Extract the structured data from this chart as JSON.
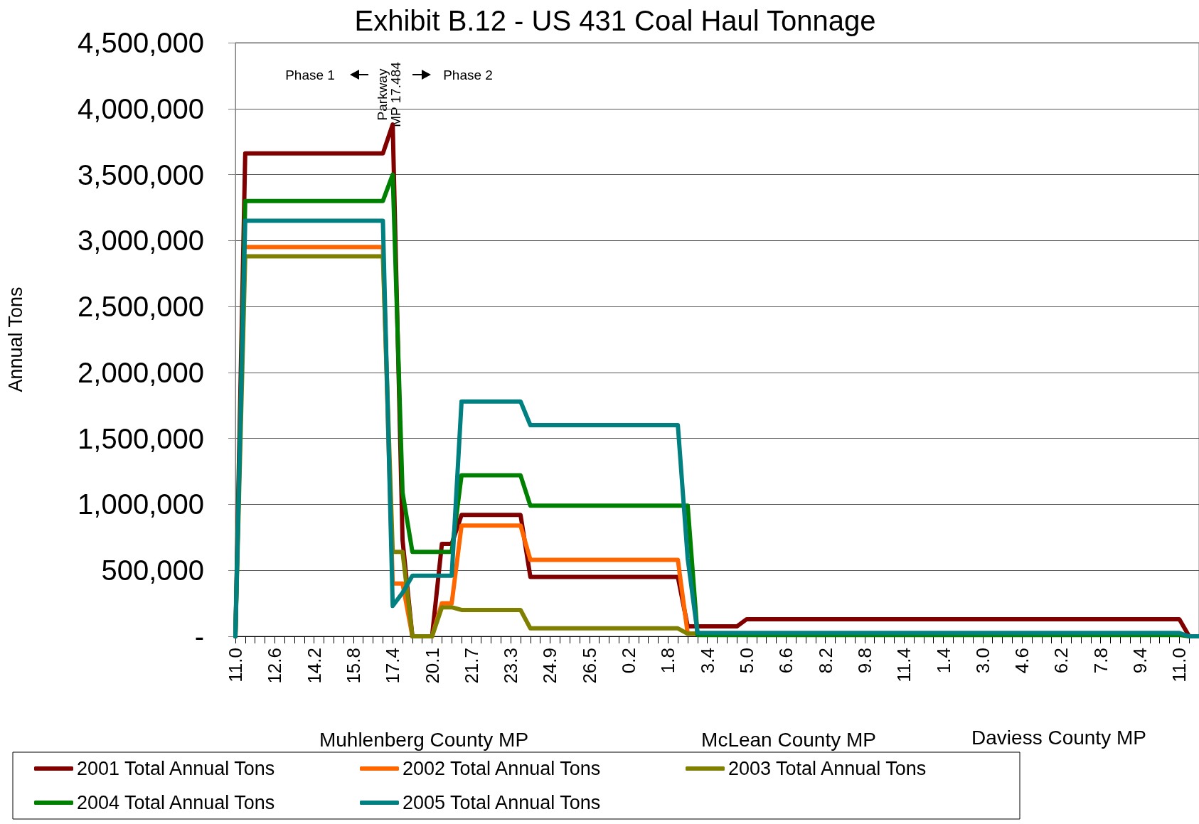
{
  "chart_data": {
    "type": "line",
    "title": "Exhibit B.12 - US 431 Coal Haul Tonnage",
    "ylabel": "Annual Tons",
    "categories": [
      "11.0",
      null,
      null,
      null,
      "12.6",
      null,
      null,
      null,
      "14.2",
      null,
      null,
      null,
      "15.8",
      null,
      null,
      null,
      "17.4",
      null,
      null,
      null,
      "20.1",
      null,
      null,
      null,
      "21.7",
      null,
      null,
      null,
      "23.3",
      null,
      null,
      null,
      "24.9",
      null,
      null,
      null,
      "26.5",
      null,
      null,
      null,
      "0.2",
      null,
      null,
      null,
      "1.8",
      null,
      null,
      null,
      "3.4",
      null,
      null,
      null,
      "5.0",
      null,
      null,
      null,
      "6.6",
      null,
      null,
      null,
      "8.2",
      null,
      null,
      null,
      "9.8",
      null,
      null,
      null,
      "11.4",
      null,
      null,
      null,
      "1.4",
      null,
      null,
      null,
      "3.0",
      null,
      null,
      null,
      "4.6",
      null,
      null,
      null,
      "6.2",
      null,
      null,
      null,
      "7.8",
      null,
      null,
      null,
      "9.4",
      null,
      null,
      null,
      "11.0",
      null,
      null
    ],
    "series": [
      {
        "name": "2001 Total Annual Tons",
        "color": "#800000",
        "values": [
          0,
          3660000,
          3660000,
          3660000,
          3660000,
          3660000,
          3660000,
          3660000,
          3660000,
          3660000,
          3660000,
          3660000,
          3660000,
          3660000,
          3660000,
          3660000,
          3880000,
          730000,
          0,
          0,
          0,
          700000,
          700000,
          920000,
          920000,
          920000,
          920000,
          920000,
          920000,
          920000,
          450000,
          450000,
          450000,
          450000,
          450000,
          450000,
          450000,
          450000,
          450000,
          450000,
          450000,
          450000,
          450000,
          450000,
          450000,
          450000,
          75000,
          75000,
          75000,
          75000,
          75000,
          75000,
          130000,
          130000,
          130000,
          130000,
          130000,
          130000,
          130000,
          130000,
          130000,
          130000,
          130000,
          130000,
          130000,
          130000,
          130000,
          130000,
          130000,
          130000,
          130000,
          130000,
          130000,
          130000,
          130000,
          130000,
          130000,
          130000,
          130000,
          130000,
          130000,
          130000,
          130000,
          130000,
          130000,
          130000,
          130000,
          130000,
          130000,
          130000,
          130000,
          130000,
          130000,
          130000,
          130000,
          130000,
          130000,
          0,
          0
        ]
      },
      {
        "name": "2002 Total Annual Tons",
        "color": "#ff6600",
        "values": [
          null,
          2950000,
          2950000,
          2950000,
          2950000,
          2950000,
          2950000,
          2950000,
          2950000,
          2950000,
          2950000,
          2950000,
          2950000,
          2950000,
          2950000,
          2950000,
          400000,
          400000,
          0,
          null,
          0,
          250000,
          250000,
          840000,
          840000,
          840000,
          840000,
          840000,
          840000,
          840000,
          580000,
          580000,
          580000,
          580000,
          580000,
          580000,
          580000,
          580000,
          580000,
          580000,
          580000,
          580000,
          580000,
          580000,
          580000,
          580000,
          20000,
          20000,
          null,
          null,
          null,
          null,
          null,
          null,
          null,
          null,
          null,
          null,
          null,
          null,
          null,
          null,
          null,
          null,
          null,
          null,
          null,
          null,
          null,
          null,
          null,
          null,
          null,
          null,
          null,
          null,
          null,
          null,
          null,
          null,
          null,
          null,
          null,
          null,
          null,
          null,
          null,
          null,
          null,
          null,
          null,
          null,
          null,
          null,
          null,
          null,
          null,
          null,
          null
        ]
      },
      {
        "name": "2003 Total Annual Tons",
        "color": "#808000",
        "values": [
          0,
          2880000,
          2880000,
          2880000,
          2880000,
          2880000,
          2880000,
          2880000,
          2880000,
          2880000,
          2880000,
          2880000,
          2880000,
          2880000,
          2880000,
          2880000,
          640000,
          640000,
          0,
          0,
          0,
          220000,
          220000,
          200000,
          200000,
          200000,
          200000,
          200000,
          200000,
          200000,
          60000,
          60000,
          60000,
          60000,
          60000,
          60000,
          60000,
          60000,
          60000,
          60000,
          60000,
          60000,
          60000,
          60000,
          60000,
          60000,
          20000,
          20000,
          null,
          null,
          null,
          null,
          null,
          null,
          null,
          null,
          null,
          null,
          null,
          null,
          null,
          null,
          null,
          null,
          null,
          null,
          null,
          null,
          null,
          null,
          null,
          null,
          null,
          null,
          null,
          null,
          null,
          null,
          null,
          null,
          null,
          null,
          null,
          null,
          null,
          null,
          null,
          null,
          null,
          null,
          null,
          null,
          null,
          null,
          null,
          null,
          null,
          null,
          null
        ]
      },
      {
        "name": "2004 Total Annual Tons",
        "color": "#008000",
        "values": [
          0,
          3300000,
          3300000,
          3300000,
          3300000,
          3300000,
          3300000,
          3300000,
          3300000,
          3300000,
          3300000,
          3300000,
          3300000,
          3300000,
          3300000,
          3300000,
          3500000,
          1090000,
          640000,
          640000,
          640000,
          640000,
          640000,
          1220000,
          1220000,
          1220000,
          1220000,
          1220000,
          1220000,
          1220000,
          990000,
          990000,
          990000,
          990000,
          990000,
          990000,
          990000,
          990000,
          990000,
          990000,
          990000,
          990000,
          990000,
          990000,
          990000,
          990000,
          990000,
          10000,
          10000,
          10000,
          10000,
          10000,
          10000,
          10000,
          10000,
          10000,
          10000,
          10000,
          10000,
          10000,
          10000,
          10000,
          10000,
          10000,
          10000,
          10000,
          10000,
          10000,
          10000,
          10000,
          10000,
          10000,
          10000,
          10000,
          10000,
          10000,
          10000,
          10000,
          10000,
          10000,
          10000,
          10000,
          10000,
          10000,
          10000,
          10000,
          10000,
          10000,
          10000,
          10000,
          10000,
          10000,
          10000,
          10000,
          10000,
          10000,
          10000,
          0,
          0
        ]
      },
      {
        "name": "2005 Total Annual Tons",
        "color": "#008080",
        "values": [
          0,
          3150000,
          3150000,
          3150000,
          3150000,
          3150000,
          3150000,
          3150000,
          3150000,
          3150000,
          3150000,
          3150000,
          3150000,
          3150000,
          3150000,
          3150000,
          230000,
          330000,
          460000,
          460000,
          460000,
          460000,
          460000,
          1780000,
          1780000,
          1780000,
          1780000,
          1780000,
          1780000,
          1780000,
          1600000,
          1600000,
          1600000,
          1600000,
          1600000,
          1600000,
          1600000,
          1600000,
          1600000,
          1600000,
          1600000,
          1600000,
          1600000,
          1600000,
          1600000,
          1600000,
          590000,
          25000,
          25000,
          25000,
          25000,
          25000,
          25000,
          25000,
          25000,
          25000,
          25000,
          25000,
          25000,
          25000,
          25000,
          25000,
          25000,
          25000,
          25000,
          25000,
          25000,
          25000,
          25000,
          25000,
          25000,
          25000,
          25000,
          25000,
          25000,
          25000,
          25000,
          25000,
          25000,
          25000,
          25000,
          25000,
          25000,
          25000,
          25000,
          25000,
          25000,
          25000,
          25000,
          25000,
          25000,
          25000,
          25000,
          25000,
          25000,
          25000,
          25000,
          0,
          0
        ]
      }
    ],
    "ylim": [
      0,
      4500000
    ],
    "yticks": [
      {
        "value": 0,
        "label": "-"
      },
      {
        "value": 500000,
        "label": "500,000"
      },
      {
        "value": 1000000,
        "label": "1,000,000"
      },
      {
        "value": 1500000,
        "label": "1,500,000"
      },
      {
        "value": 2000000,
        "label": "2,000,000"
      },
      {
        "value": 2500000,
        "label": "2,500,000"
      },
      {
        "value": 3000000,
        "label": "3,000,000"
      },
      {
        "value": 3500000,
        "label": "3,500,000"
      },
      {
        "value": 4000000,
        "label": "4,000,000"
      },
      {
        "value": 4500000,
        "label": "4,500,000"
      }
    ],
    "annotations": [
      "Phase 1",
      "Parkway\nMP 17.484",
      "Phase 2",
      "Muhlenberg County MP",
      "McLean County MP",
      "Daviess County MP"
    ],
    "grid": "y",
    "legend": "bottom",
    "marker": "none",
    "line_style": "solid"
  }
}
